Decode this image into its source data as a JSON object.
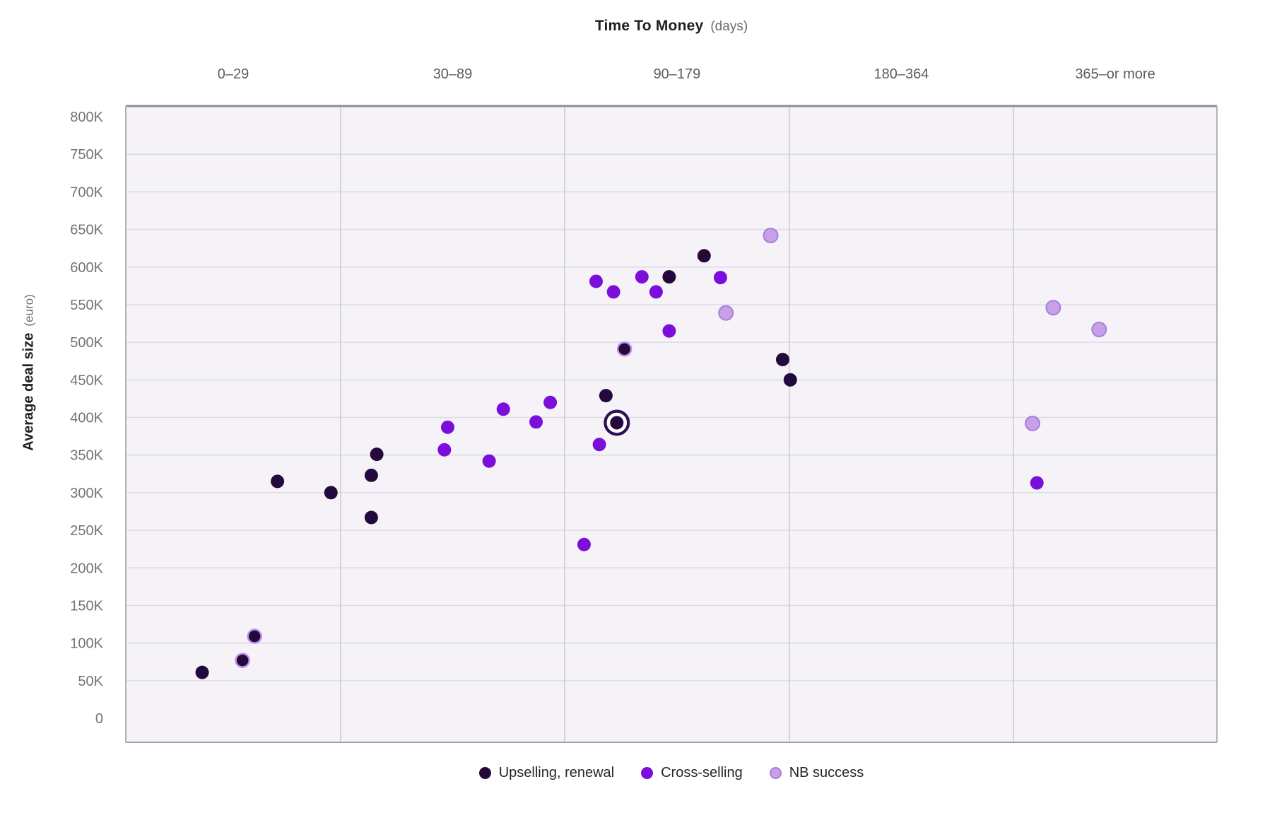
{
  "chart_data": {
    "type": "scatter",
    "title": "Time To Money",
    "title_unit": "(days)",
    "ylabel": "Average deal size",
    "ylabel_unit": "(euro)",
    "ylim": [
      0,
      800000
    ],
    "grid": "horizontal-and-category-separators",
    "legend_position": "bottom-center",
    "x_categories": [
      "0–29",
      "30–89",
      "90–179",
      "180–364",
      "365–or more"
    ],
    "y_tick_labels": [
      "800K",
      "750K",
      "700K",
      "650K",
      "600K",
      "550K",
      "500K",
      "450K",
      "400K",
      "350K",
      "300K",
      "250K",
      "200K",
      "150K",
      "100K",
      "50K",
      "0"
    ],
    "y_tick_values_k": [
      800,
      750,
      700,
      650,
      600,
      550,
      500,
      450,
      400,
      350,
      300,
      250,
      200,
      150,
      100,
      50,
      0
    ],
    "colors": {
      "upselling_renewal": "#240A3C",
      "cross_selling": "#7B0EDB",
      "nb_success_fill": "#C6A0E9",
      "nb_success_stroke": "#AA80D8",
      "selected_ring": "#2F1057",
      "plot_background": "#F5F3F8",
      "gridline": "#DDDAE3"
    },
    "series": [
      {
        "name": "Upselling, renewal",
        "color": "#240A3C",
        "points": [
          {
            "category": "0–29",
            "value_k": 61,
            "x_frac": 0.07
          },
          {
            "category": "0–29",
            "value_k": 77,
            "x_frac": 0.107,
            "halo": true
          },
          {
            "category": "0–29",
            "value_k": 109,
            "x_frac": 0.118,
            "halo": true
          },
          {
            "category": "0–29",
            "value_k": 315,
            "x_frac": 0.139
          },
          {
            "category": "0–29",
            "value_k": 300,
            "x_frac": 0.188
          },
          {
            "category": "30–89",
            "value_k": 323,
            "x_frac": 0.225
          },
          {
            "category": "30–89",
            "value_k": 351,
            "x_frac": 0.23
          },
          {
            "category": "30–89",
            "value_k": 267,
            "x_frac": 0.225
          },
          {
            "category": "90–179",
            "value_k": 429,
            "x_frac": 0.44
          },
          {
            "category": "90–179",
            "value_k": 393,
            "x_frac": 0.45,
            "selected": true
          },
          {
            "category": "90–179",
            "value_k": 491,
            "x_frac": 0.457,
            "halo": true
          },
          {
            "category": "90–179",
            "value_k": 587,
            "x_frac": 0.498
          },
          {
            "category": "90–179",
            "value_k": 615,
            "x_frac": 0.53
          },
          {
            "category": "90–179",
            "value_k": 477,
            "x_frac": 0.602
          },
          {
            "category": "180–364",
            "value_k": 450,
            "x_frac": 0.609
          }
        ]
      },
      {
        "name": "Cross-selling",
        "color": "#7B0EDB",
        "points": [
          {
            "category": "30–89",
            "value_k": 387,
            "x_frac": 0.295
          },
          {
            "category": "30–89",
            "value_k": 357,
            "x_frac": 0.292
          },
          {
            "category": "30–89",
            "value_k": 342,
            "x_frac": 0.333
          },
          {
            "category": "30–89",
            "value_k": 411,
            "x_frac": 0.346
          },
          {
            "category": "30–89",
            "value_k": 394,
            "x_frac": 0.376
          },
          {
            "category": "30–89",
            "value_k": 420,
            "x_frac": 0.389
          },
          {
            "category": "90–179",
            "value_k": 231,
            "x_frac": 0.42
          },
          {
            "category": "90–179",
            "value_k": 581,
            "x_frac": 0.431
          },
          {
            "category": "90–179",
            "value_k": 364,
            "x_frac": 0.434
          },
          {
            "category": "90–179",
            "value_k": 567,
            "x_frac": 0.447
          },
          {
            "category": "90–179",
            "value_k": 587,
            "x_frac": 0.473
          },
          {
            "category": "90–179",
            "value_k": 567,
            "x_frac": 0.486
          },
          {
            "category": "90–179",
            "value_k": 515,
            "x_frac": 0.498
          },
          {
            "category": "90–179",
            "value_k": 586,
            "x_frac": 0.545
          },
          {
            "category": "365–or more",
            "value_k": 313,
            "x_frac": 0.835
          }
        ]
      },
      {
        "name": "NB success",
        "color": "#C6A0E9",
        "stroke": "#AA80D8",
        "points": [
          {
            "category": "90–179",
            "value_k": 539,
            "x_frac": 0.55
          },
          {
            "category": "90–179",
            "value_k": 642,
            "x_frac": 0.591
          },
          {
            "category": "365–or more",
            "value_k": 392,
            "x_frac": 0.831
          },
          {
            "category": "365–or more",
            "value_k": 546,
            "x_frac": 0.85
          },
          {
            "category": "365–or more",
            "value_k": 517,
            "x_frac": 0.892
          }
        ]
      }
    ]
  }
}
